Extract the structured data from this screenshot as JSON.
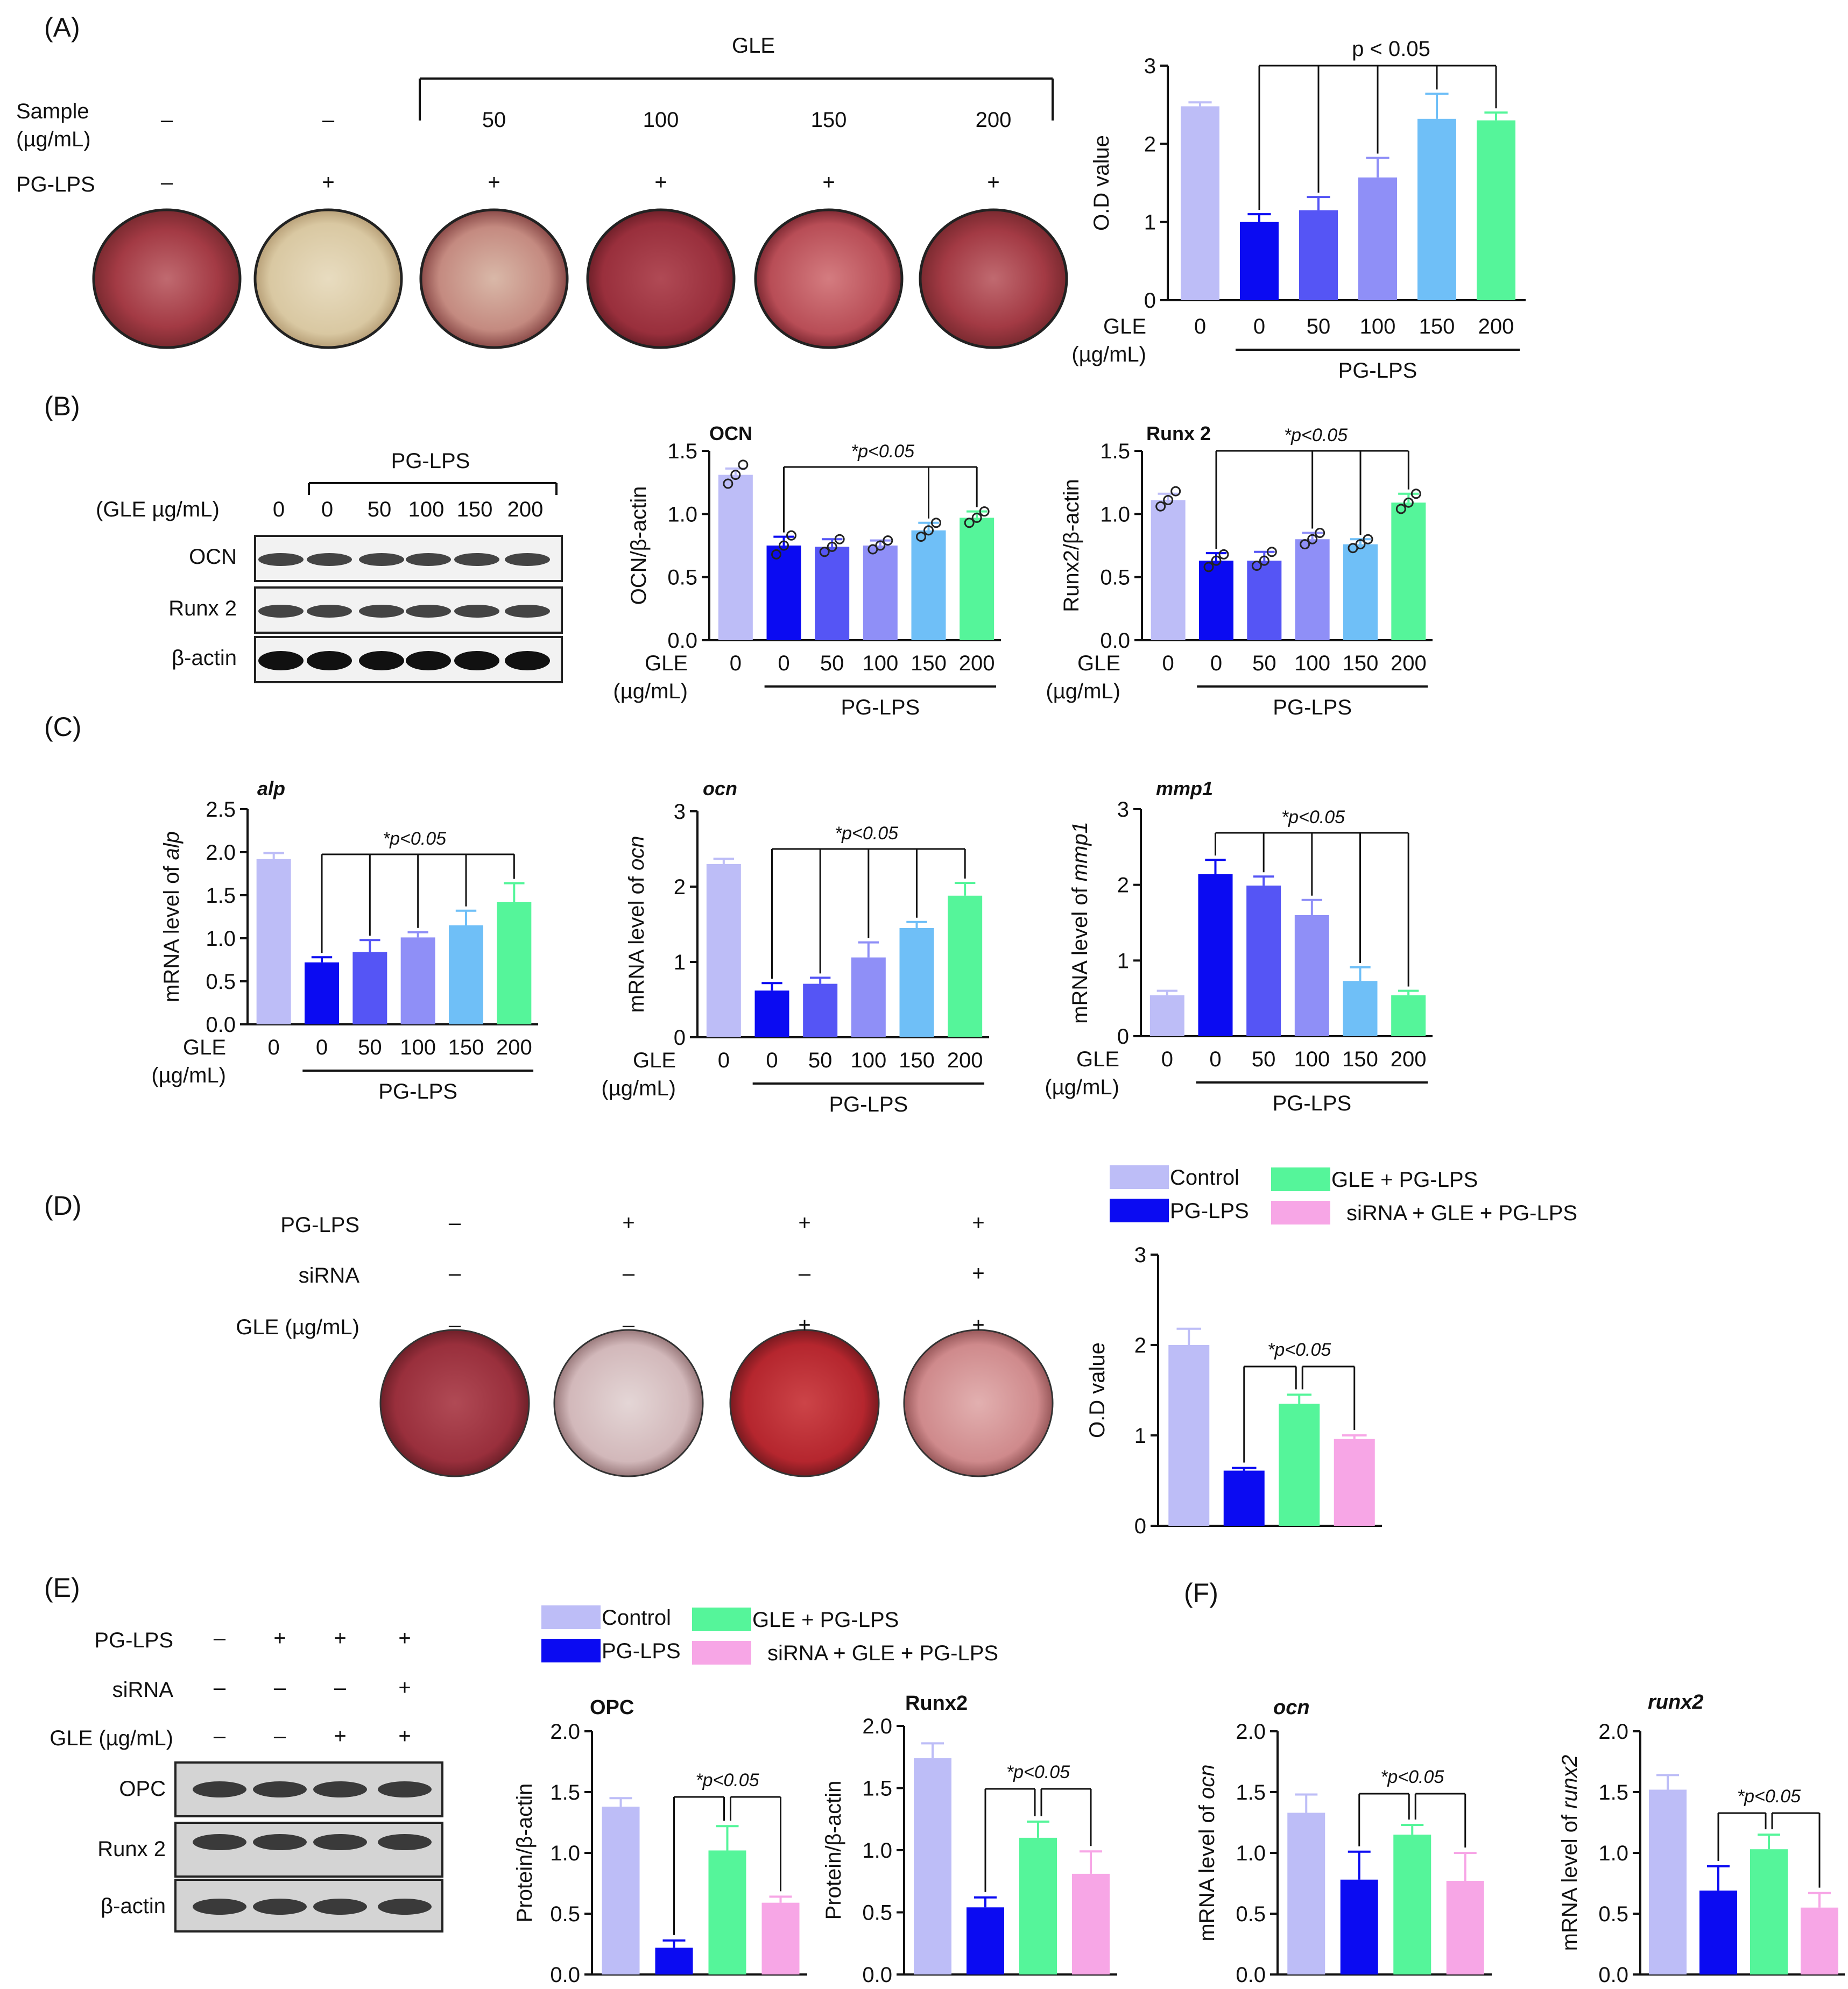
{
  "colors": {
    "control": "#bdbdf7",
    "pg_lps": "#0b0bf2",
    "gle50": "#5555f5",
    "gle100": "#8f8ff7",
    "gle150": "#6fbff7",
    "gle200": "#55f59a",
    "sirna": "#f7a6e6",
    "text": "#111111"
  },
  "panels": {
    "A": "(A)",
    "B": "(B)",
    "C": "(C)",
    "D": "(D)",
    "E": "(E)",
    "F": "(F)"
  },
  "panel_a": {
    "gle_header": "GLE",
    "row1_label_line1": "Sample",
    "row1_label_line2": "(µg/mL)",
    "row1_values": [
      "–",
      "–",
      "50",
      "100",
      "150",
      "200"
    ],
    "row2_label": "PG-LPS",
    "row2_values": [
      "–",
      "+",
      "+",
      "+",
      "+",
      "+"
    ]
  },
  "panel_b_blot": {
    "group_label": "PG-LPS",
    "gle_row_label": "(GLE µg/mL)",
    "lane_values": [
      "0",
      "0",
      "50",
      "100",
      "150",
      "200"
    ],
    "bands": [
      "OCN",
      "Runx 2",
      "β-actin"
    ]
  },
  "panel_d": {
    "row_labels": [
      "PG-LPS",
      "siRNA",
      "GLE (µg/mL)"
    ],
    "rows": [
      [
        "–",
        "+",
        "+",
        "+"
      ],
      [
        "–",
        "–",
        "–",
        "+"
      ],
      [
        "–",
        "–",
        "+",
        "+"
      ]
    ]
  },
  "panel_e_blot": {
    "row_labels": [
      "PG-LPS",
      "siRNA",
      "GLE (µg/mL)"
    ],
    "rows": [
      [
        "–",
        "+",
        "+",
        "+"
      ],
      [
        "–",
        "–",
        "–",
        "+"
      ],
      [
        "–",
        "–",
        "+",
        "+"
      ]
    ],
    "bands": [
      "OPC",
      "Runx 2",
      "β-actin"
    ]
  },
  "legend_d": {
    "items": [
      {
        "label": "Control",
        "color_key": "control"
      },
      {
        "label": "PG-LPS",
        "color_key": "pg_lps"
      },
      {
        "label": "GLE + PG-LPS",
        "color_key": "gle200"
      },
      {
        "label": "siRNA + GLE + PG-LPS",
        "color_key": "sirna"
      }
    ]
  },
  "legend_e": {
    "items": [
      {
        "label": "Control",
        "color_key": "control"
      },
      {
        "label": "PG-LPS",
        "color_key": "pg_lps"
      },
      {
        "label": "GLE + PG-LPS",
        "color_key": "gle200"
      },
      {
        "label": "siRNA + GLE + PG-LPS",
        "color_key": "sirna"
      }
    ]
  },
  "chart_data": [
    {
      "id": "A",
      "type": "bar",
      "title": "",
      "ylabel": "O.D value",
      "ylim": [
        0,
        3
      ],
      "yticks": [
        "0",
        "1",
        "2",
        "3"
      ],
      "xlabel": "GLE",
      "xunit": "(µg/mL)",
      "categories": [
        "0",
        "0",
        "50",
        "100",
        "150",
        "200"
      ],
      "values": [
        2.48,
        1.0,
        1.15,
        1.57,
        2.32,
        2.3
      ],
      "errors": [
        0.05,
        0.1,
        0.17,
        0.25,
        0.32,
        0.1
      ],
      "color_keys": [
        "control",
        "pg_lps",
        "gle50",
        "gle100",
        "gle150",
        "gle200"
      ],
      "group_label": "PG-LPS",
      "sig_label": "p < 0.05",
      "sig_italic": false
    },
    {
      "id": "B-OCN",
      "type": "bar",
      "title": "OCN",
      "ylabel": "OCN/β-actin",
      "ylim": [
        0,
        1.5
      ],
      "yticks": [
        "0.0",
        "0.5",
        "1.0",
        "1.5"
      ],
      "xlabel": "GLE",
      "xunit": "(µg/mL)",
      "categories": [
        "0",
        "0",
        "50",
        "100",
        "150",
        "200"
      ],
      "values": [
        1.31,
        0.75,
        0.74,
        0.75,
        0.87,
        0.97
      ],
      "errors": [
        0.05,
        0.07,
        0.06,
        0.04,
        0.06,
        0.05
      ],
      "points": [
        [
          1.24,
          1.31,
          1.39
        ],
        [
          0.68,
          0.75,
          0.83
        ],
        [
          0.7,
          0.74,
          0.8
        ],
        [
          0.72,
          0.75,
          0.79
        ],
        [
          0.82,
          0.87,
          0.93
        ],
        [
          0.93,
          0.97,
          1.02
        ]
      ],
      "color_keys": [
        "control",
        "pg_lps",
        "gle50",
        "gle100",
        "gle150",
        "gle200"
      ],
      "group_label": "PG-LPS",
      "sig_label": "*p<0.05",
      "sig_italic": true
    },
    {
      "id": "B-Runx2",
      "type": "bar",
      "title": "Runx 2",
      "ylabel": "Runx2/β-actin",
      "ylim": [
        0,
        1.5
      ],
      "yticks": [
        "0.0",
        "0.5",
        "1.0",
        "1.5"
      ],
      "xlabel": "GLE",
      "xunit": "(µg/mL)",
      "categories": [
        "0",
        "0",
        "50",
        "100",
        "150",
        "200"
      ],
      "values": [
        1.11,
        0.63,
        0.63,
        0.8,
        0.76,
        1.09
      ],
      "errors": [
        0.05,
        0.06,
        0.07,
        0.05,
        0.04,
        0.07
      ],
      "points": [
        [
          1.06,
          1.11,
          1.18
        ],
        [
          0.58,
          0.63,
          0.68
        ],
        [
          0.59,
          0.63,
          0.7
        ],
        [
          0.76,
          0.8,
          0.85
        ],
        [
          0.73,
          0.76,
          0.8
        ],
        [
          1.04,
          1.09,
          1.16
        ]
      ],
      "color_keys": [
        "control",
        "pg_lps",
        "gle50",
        "gle100",
        "gle150",
        "gle200"
      ],
      "group_label": "PG-LPS",
      "sig_label": "*p<0.05",
      "sig_italic": true
    },
    {
      "id": "C-alp",
      "type": "bar",
      "title": "alp",
      "ylabel_prefix": "mRNA level of ",
      "ylabel_gene": "alp",
      "ylim": [
        0,
        2.5
      ],
      "yticks": [
        "0.0",
        "0.5",
        "1.0",
        "1.5",
        "2.0",
        "2.5"
      ],
      "xlabel": "GLE",
      "xunit": "(µg/mL)",
      "categories": [
        "0",
        "0",
        "50",
        "100",
        "150",
        "200"
      ],
      "values": [
        1.92,
        0.72,
        0.84,
        1.01,
        1.15,
        1.42
      ],
      "errors": [
        0.07,
        0.06,
        0.14,
        0.06,
        0.17,
        0.22
      ],
      "color_keys": [
        "control",
        "pg_lps",
        "gle50",
        "gle100",
        "gle150",
        "gle200"
      ],
      "group_label": "PG-LPS",
      "sig_label": "*p<0.05",
      "sig_italic": true
    },
    {
      "id": "C-ocn",
      "type": "bar",
      "title": "ocn",
      "ylabel_prefix": "mRNA level of ",
      "ylabel_gene": "ocn",
      "ylim": [
        0,
        3
      ],
      "yticks": [
        "0",
        "1",
        "2",
        "3"
      ],
      "xlabel": "GLE",
      "xunit": "(µg/mL)",
      "categories": [
        "0",
        "0",
        "50",
        "100",
        "150",
        "200"
      ],
      "values": [
        2.3,
        0.62,
        0.71,
        1.06,
        1.45,
        1.88
      ],
      "errors": [
        0.07,
        0.1,
        0.08,
        0.2,
        0.08,
        0.17
      ],
      "color_keys": [
        "control",
        "pg_lps",
        "gle50",
        "gle100",
        "gle150",
        "gle200"
      ],
      "group_label": "PG-LPS",
      "sig_label": "*p<0.05",
      "sig_italic": true
    },
    {
      "id": "C-mmp1",
      "type": "bar",
      "title": "mmp1",
      "ylabel_prefix": "mRNA level of ",
      "ylabel_gene": "mmp1",
      "ylim": [
        0,
        3
      ],
      "yticks": [
        "0",
        "1",
        "2",
        "3"
      ],
      "xlabel": "GLE",
      "xunit": "(µg/mL)",
      "categories": [
        "0",
        "0",
        "50",
        "100",
        "150",
        "200"
      ],
      "values": [
        0.54,
        2.14,
        1.99,
        1.6,
        0.73,
        0.54
      ],
      "errors": [
        0.06,
        0.19,
        0.12,
        0.2,
        0.18,
        0.06
      ],
      "color_keys": [
        "control",
        "pg_lps",
        "gle50",
        "gle100",
        "gle150",
        "gle200"
      ],
      "group_label": "PG-LPS",
      "sig_label": "*p<0.05",
      "sig_italic": true
    },
    {
      "id": "D",
      "type": "bar",
      "title": "",
      "ylabel": "O.D value",
      "ylim": [
        0,
        3
      ],
      "yticks": [
        "0",
        "1",
        "2",
        "3"
      ],
      "categories": [
        "Control",
        "PG-LPS",
        "GLE + PG-LPS",
        "siRNA + GLE + PG-LPS"
      ],
      "values": [
        2.0,
        0.61,
        1.35,
        0.96
      ],
      "errors": [
        0.18,
        0.03,
        0.1,
        0.04
      ],
      "color_keys": [
        "control",
        "pg_lps",
        "gle200",
        "sirna"
      ],
      "sig_label": "*p<0.05",
      "sig_italic": true
    },
    {
      "id": "E-OPC",
      "type": "bar",
      "title": "OPC",
      "ylabel": "Protein/β-actin",
      "ylim": [
        0,
        2
      ],
      "yticks": [
        "0.0",
        "0.5",
        "1.0",
        "1.5",
        "2.0"
      ],
      "categories": [
        "Control",
        "PG-LPS",
        "GLE + PG-LPS",
        "siRNA + GLE + PG-LPS"
      ],
      "values": [
        1.38,
        0.22,
        1.02,
        0.59
      ],
      "errors": [
        0.07,
        0.06,
        0.2,
        0.05
      ],
      "color_keys": [
        "control",
        "pg_lps",
        "gle200",
        "sirna"
      ],
      "sig_label": "*p<0.05",
      "sig_italic": true
    },
    {
      "id": "E-Runx2",
      "type": "bar",
      "title": "Runx2",
      "ylabel": "Protein/β-actin",
      "ylim": [
        0,
        2
      ],
      "yticks": [
        "0.0",
        "0.5",
        "1.0",
        "1.5",
        "2.0"
      ],
      "categories": [
        "Control",
        "PG-LPS",
        "GLE + PG-LPS",
        "siRNA + GLE + PG-LPS"
      ],
      "values": [
        1.74,
        0.54,
        1.1,
        0.81
      ],
      "errors": [
        0.12,
        0.08,
        0.13,
        0.18
      ],
      "color_keys": [
        "control",
        "pg_lps",
        "gle200",
        "sirna"
      ],
      "sig_label": "*p<0.05",
      "sig_italic": true
    },
    {
      "id": "F-ocn",
      "type": "bar",
      "title": "ocn",
      "ylabel_prefix": "mRNA level of ",
      "ylabel_gene": "ocn",
      "ylim": [
        0,
        2
      ],
      "yticks": [
        "0.0",
        "0.5",
        "1.0",
        "1.5",
        "2.0"
      ],
      "categories": [
        "Control",
        "PG-LPS",
        "GLE + PG-LPS",
        "siRNA + GLE + PG-LPS"
      ],
      "values": [
        1.33,
        0.78,
        1.15,
        0.77
      ],
      "errors": [
        0.15,
        0.23,
        0.08,
        0.23
      ],
      "color_keys": [
        "control",
        "pg_lps",
        "gle200",
        "sirna"
      ],
      "sig_label": "*p<0.05",
      "sig_italic": true
    },
    {
      "id": "F-runx2",
      "type": "bar",
      "title": "runx2",
      "ylabel_prefix": "mRNA level of ",
      "ylabel_gene": "runx2",
      "ylim": [
        0,
        2
      ],
      "yticks": [
        "0.0",
        "0.5",
        "1.0",
        "1.5",
        "2.0"
      ],
      "categories": [
        "Control",
        "PG-LPS",
        "GLE + PG-LPS",
        "siRNA + GLE + PG-LPS"
      ],
      "values": [
        1.52,
        0.69,
        1.03,
        0.55
      ],
      "errors": [
        0.12,
        0.2,
        0.12,
        0.12
      ],
      "color_keys": [
        "control",
        "pg_lps",
        "gle200",
        "sirna"
      ],
      "sig_label": "*p<0.05",
      "sig_italic": true
    }
  ]
}
